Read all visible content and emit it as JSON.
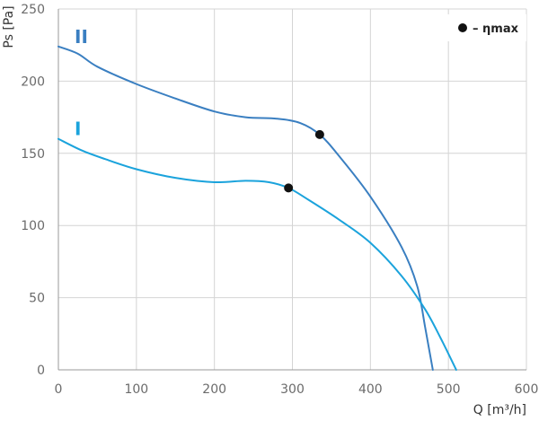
{
  "chart_data": {
    "type": "line",
    "xlabel": "Q [m³/h]",
    "ylabel": "Ps [Pa]",
    "xlim": [
      0,
      600
    ],
    "ylim": [
      0,
      250
    ],
    "xticks": [
      "0",
      "100",
      "200",
      "300",
      "400",
      "500",
      "600"
    ],
    "yticks": [
      "0",
      "50",
      "100",
      "150",
      "200",
      "250"
    ],
    "grid": true,
    "legend": {
      "placement": "top-right",
      "marker": "●",
      "label": "– ηmax"
    },
    "series": [
      {
        "name": "II",
        "color": "#3a7fc1",
        "x": [
          0,
          25,
          50,
          100,
          150,
          200,
          240,
          280,
          310,
          335,
          360,
          400,
          440,
          460,
          470,
          476,
          480
        ],
        "y": [
          224,
          219,
          210,
          198,
          188,
          179,
          175,
          174,
          171,
          163,
          148,
          120,
          85,
          58,
          30,
          12,
          0
        ],
        "eta_max": [
          335,
          163
        ]
      },
      {
        "name": "I",
        "color": "#1ba3dc",
        "x": [
          0,
          30,
          60,
          100,
          150,
          200,
          240,
          270,
          295,
          320,
          360,
          400,
          440,
          470,
          490,
          510
        ],
        "y": [
          160,
          152,
          146,
          139,
          133,
          130,
          131,
          130,
          126,
          118,
          104,
          88,
          65,
          42,
          22,
          0
        ],
        "eta_max": [
          295,
          126
        ]
      }
    ]
  }
}
